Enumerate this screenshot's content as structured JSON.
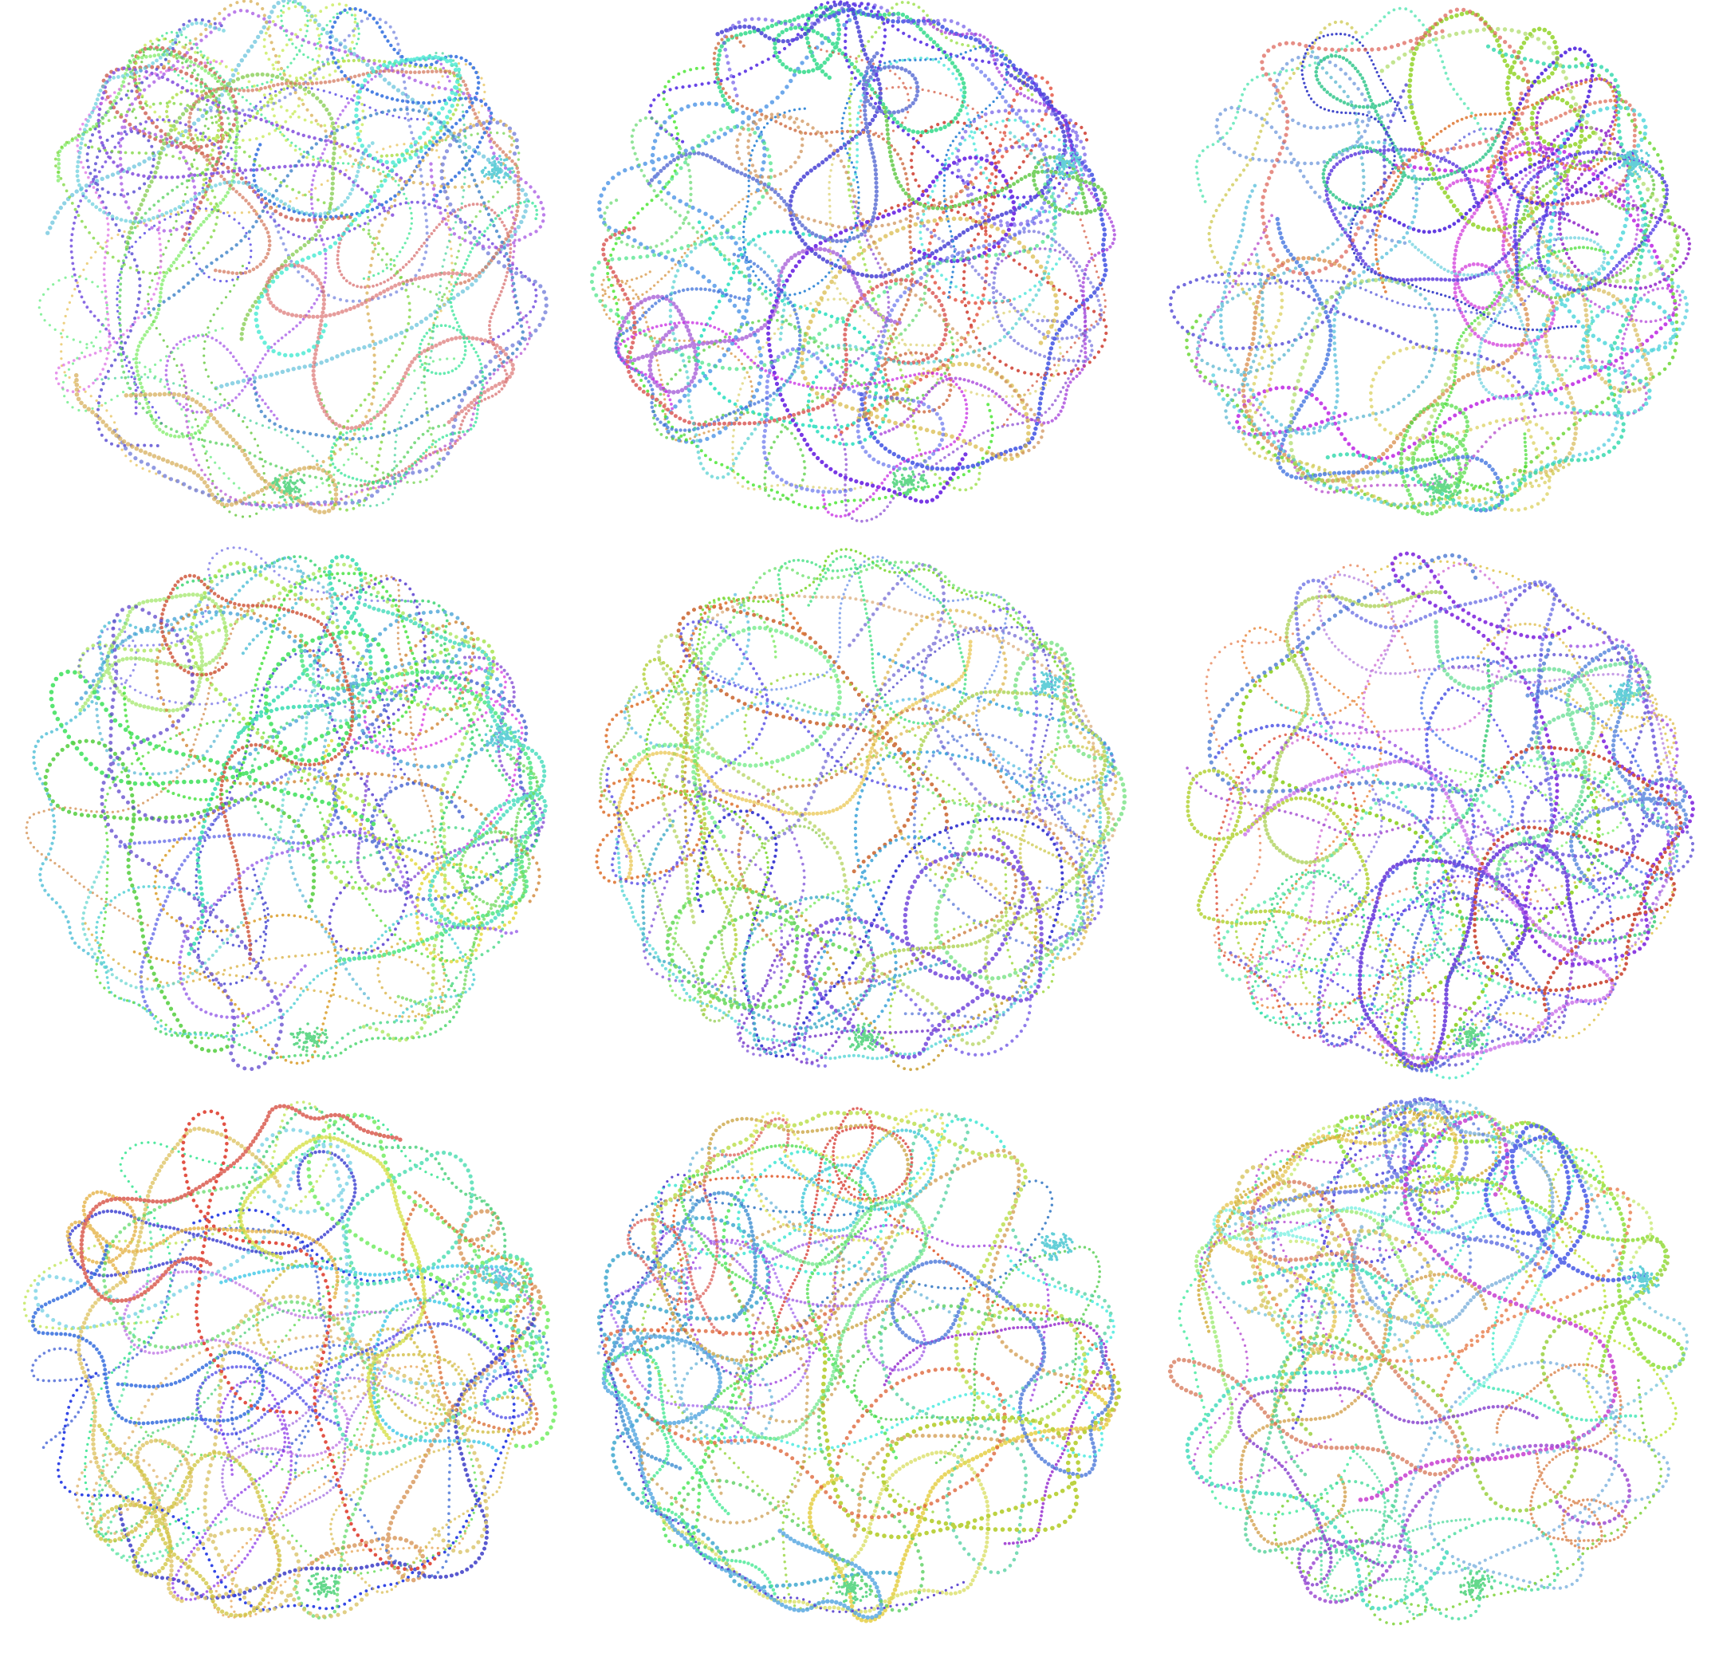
{
  "layout": {
    "rows": 3,
    "columns": 3
  }
}
